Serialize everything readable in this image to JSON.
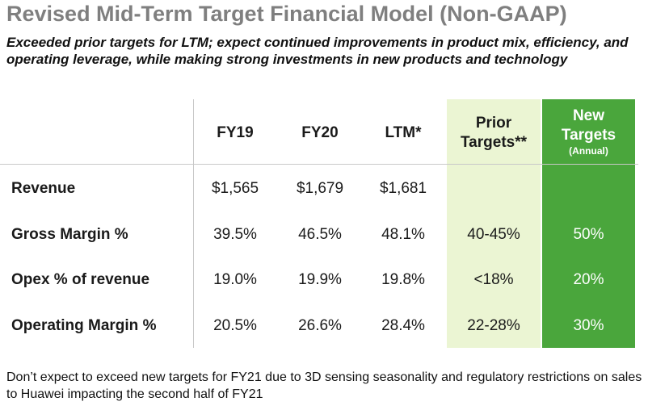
{
  "title": "Revised Mid-Term Target Financial Model (Non-GAAP)",
  "subtitle": "Exceeded prior targets for LTM; expect continued improvements in product mix, efficiency, and operating leverage, while making strong investments in new products and technology",
  "colors": {
    "prior_bg": "#ebf5d3",
    "new_bg": "#4aa63c",
    "title": "#7f7f7f"
  },
  "table": {
    "headers": {
      "fy19": "FY19",
      "fy20": "FY20",
      "ltm": "LTM*",
      "prior_line1": "Prior",
      "prior_line2": "Targets**",
      "new_line1": "New",
      "new_line2": "Targets",
      "new_sub": "(Annual)"
    },
    "rows": [
      {
        "label": "Revenue",
        "fy19": "$1,565",
        "fy20": "$1,679",
        "ltm": "$1,681",
        "prior": "",
        "new": ""
      },
      {
        "label": "Gross Margin %",
        "fy19": "39.5%",
        "fy20": "46.5%",
        "ltm": "48.1%",
        "prior": "40-45%",
        "new": "50%"
      },
      {
        "label": "Opex % of revenue",
        "fy19": "19.0%",
        "fy20": "19.9%",
        "ltm": "19.8%",
        "prior": "<18%",
        "new": "20%"
      },
      {
        "label": "Operating Margin %",
        "fy19": "20.5%",
        "fy20": "26.6%",
        "ltm": "28.4%",
        "prior": "22-28%",
        "new": "30%"
      }
    ]
  },
  "footnote": "Don’t expect to exceed new targets for FY21 due to 3D sensing seasonality and regulatory restrictions on sales to Huawei impacting the second half of FY21"
}
